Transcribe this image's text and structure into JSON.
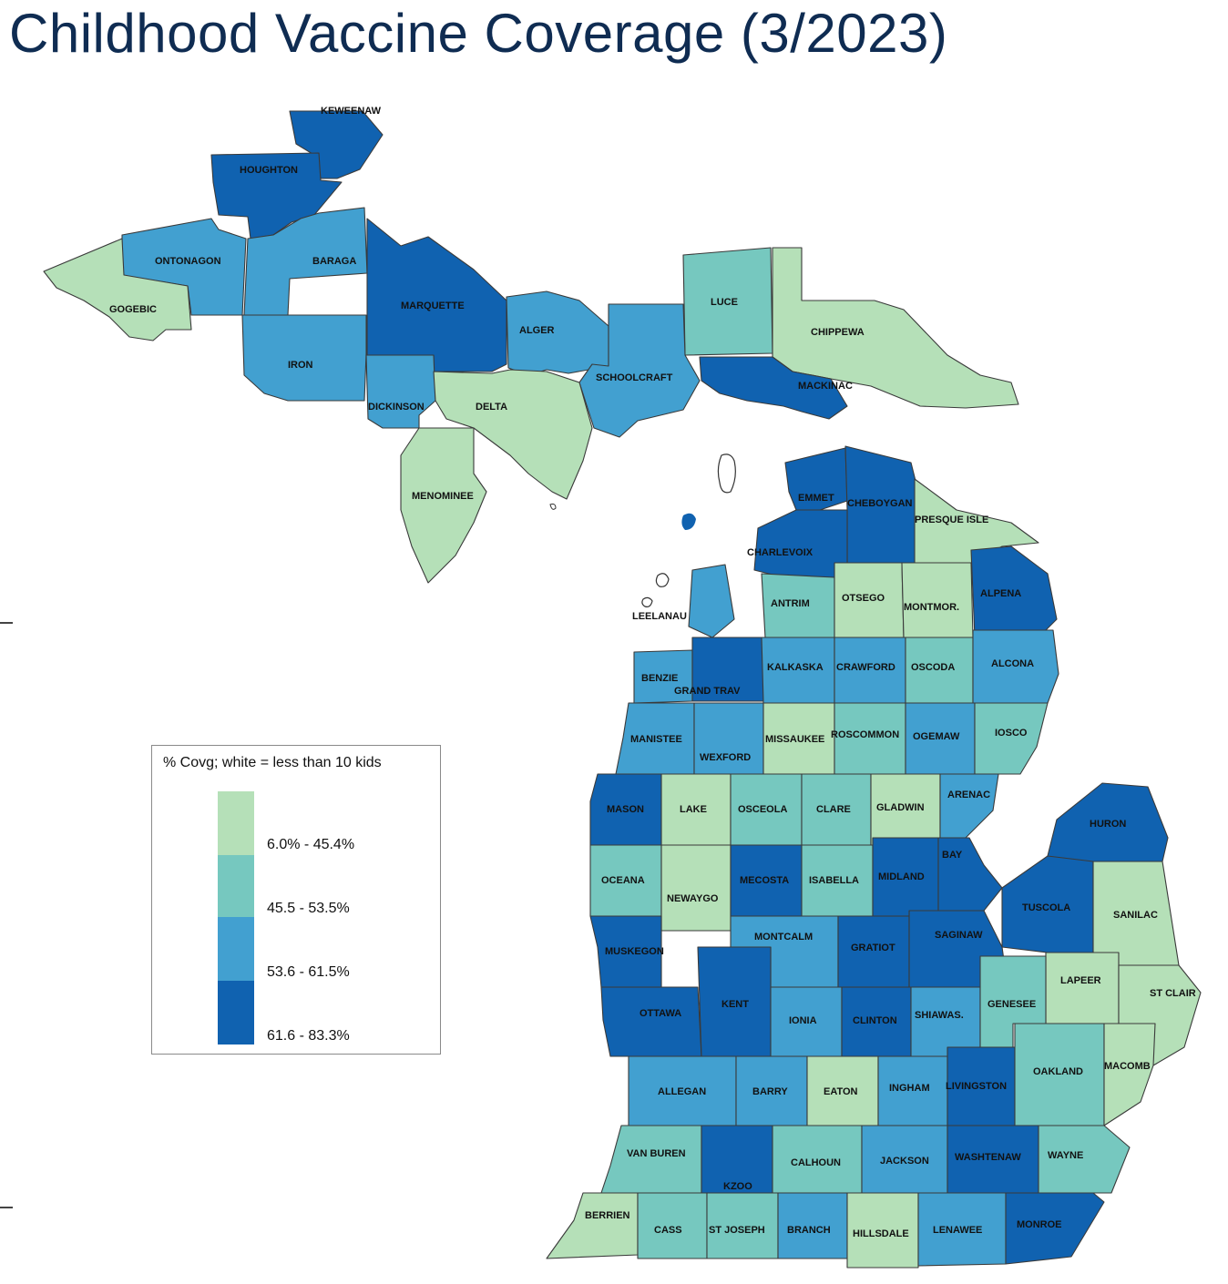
{
  "title": "Childhood Vaccine Coverage (3/2023)",
  "legend": {
    "title": "% Covg; white = less than 10 kids",
    "bins": [
      {
        "label": "6.0% - 45.4%",
        "color": "#b5e0b8"
      },
      {
        "label": "45.5 - 53.5%",
        "color": "#76c8bf"
      },
      {
        "label": "53.6 - 61.5%",
        "color": "#42a0d0"
      },
      {
        "label": "61.6 - 83.3%",
        "color": "#1062b0"
      }
    ]
  },
  "counties": [
    {
      "name": "KEWEENAW",
      "bin": 3
    },
    {
      "name": "HOUGHTON",
      "bin": 3
    },
    {
      "name": "ONTONAGON",
      "bin": 2
    },
    {
      "name": "BARAGA",
      "bin": 2
    },
    {
      "name": "GOGEBIC",
      "bin": 0
    },
    {
      "name": "MARQUETTE",
      "bin": 3
    },
    {
      "name": "ALGER",
      "bin": 2
    },
    {
      "name": "LUCE",
      "bin": 1
    },
    {
      "name": "CHIPPEWA",
      "bin": 0
    },
    {
      "name": "IRON",
      "bin": 2
    },
    {
      "name": "SCHOOLCRAFT",
      "bin": 2
    },
    {
      "name": "MACKINAC",
      "bin": 3
    },
    {
      "name": "DICKINSON",
      "bin": 2
    },
    {
      "name": "DELTA",
      "bin": 0
    },
    {
      "name": "MENOMINEE",
      "bin": 0
    },
    {
      "name": "EMMET",
      "bin": 3
    },
    {
      "name": "CHEBOYGAN",
      "bin": 3
    },
    {
      "name": "PRESQUE ISLE",
      "bin": 0
    },
    {
      "name": "CHARLEVOIX",
      "bin": 3
    },
    {
      "name": "ANTRIM",
      "bin": 1
    },
    {
      "name": "OTSEGO",
      "bin": 0
    },
    {
      "name": "MONTMOR.",
      "bin": 0
    },
    {
      "name": "ALPENA",
      "bin": 3
    },
    {
      "name": "LEELANAU",
      "bin": 2
    },
    {
      "name": "BENZIE",
      "bin": 2
    },
    {
      "name": "GRAND TRAV",
      "bin": 3
    },
    {
      "name": "KALKASKA",
      "bin": 2
    },
    {
      "name": "CRAWFORD",
      "bin": 2
    },
    {
      "name": "OSCODA",
      "bin": 1
    },
    {
      "name": "ALCONA",
      "bin": 2
    },
    {
      "name": "MANISTEE",
      "bin": 2
    },
    {
      "name": "WEXFORD",
      "bin": 2
    },
    {
      "name": "MISSAUKEE",
      "bin": 0
    },
    {
      "name": "ROSCOMMON",
      "bin": 1
    },
    {
      "name": "OGEMAW",
      "bin": 2
    },
    {
      "name": "IOSCO",
      "bin": 1
    },
    {
      "name": "MASON",
      "bin": 3
    },
    {
      "name": "LAKE",
      "bin": 0
    },
    {
      "name": "OSCEOLA",
      "bin": 1
    },
    {
      "name": "CLARE",
      "bin": 1
    },
    {
      "name": "GLADWIN",
      "bin": 0
    },
    {
      "name": "ARENAC",
      "bin": 2
    },
    {
      "name": "HURON",
      "bin": 3
    },
    {
      "name": "OCEANA",
      "bin": 1
    },
    {
      "name": "NEWAYGO",
      "bin": 0
    },
    {
      "name": "MECOSTA",
      "bin": 3
    },
    {
      "name": "ISABELLA",
      "bin": 1
    },
    {
      "name": "MIDLAND",
      "bin": 3
    },
    {
      "name": "BAY",
      "bin": 3
    },
    {
      "name": "TUSCOLA",
      "bin": 3
    },
    {
      "name": "SANILAC",
      "bin": 0
    },
    {
      "name": "MUSKEGON",
      "bin": 3
    },
    {
      "name": "MONTCALM",
      "bin": 2
    },
    {
      "name": "GRATIOT",
      "bin": 3
    },
    {
      "name": "SAGINAW",
      "bin": 3
    },
    {
      "name": "LAPEER",
      "bin": 0
    },
    {
      "name": "ST CLAIR",
      "bin": 0
    },
    {
      "name": "OTTAWA",
      "bin": 3
    },
    {
      "name": "KENT",
      "bin": 3
    },
    {
      "name": "IONIA",
      "bin": 2
    },
    {
      "name": "CLINTON",
      "bin": 3
    },
    {
      "name": "SHIAWAS.",
      "bin": 2
    },
    {
      "name": "GENESEE",
      "bin": 1
    },
    {
      "name": "ALLEGAN",
      "bin": 2
    },
    {
      "name": "BARRY",
      "bin": 2
    },
    {
      "name": "EATON",
      "bin": 0
    },
    {
      "name": "INGHAM",
      "bin": 2
    },
    {
      "name": "LIVINGSTON",
      "bin": 3
    },
    {
      "name": "OAKLAND",
      "bin": 1
    },
    {
      "name": "MACOMB",
      "bin": 0
    },
    {
      "name": "VAN BUREN",
      "bin": 1
    },
    {
      "name": "KZOO",
      "bin": 3
    },
    {
      "name": "CALHOUN",
      "bin": 1
    },
    {
      "name": "JACKSON",
      "bin": 2
    },
    {
      "name": "WASHTENAW",
      "bin": 3
    },
    {
      "name": "WAYNE",
      "bin": 1
    },
    {
      "name": "BERRIEN",
      "bin": 0
    },
    {
      "name": "CASS",
      "bin": 1
    },
    {
      "name": "ST JOSEPH",
      "bin": 1
    },
    {
      "name": "BRANCH",
      "bin": 2
    },
    {
      "name": "HILLSDALE",
      "bin": 0
    },
    {
      "name": "LENAWEE",
      "bin": 2
    },
    {
      "name": "MONROE",
      "bin": 3
    }
  ]
}
